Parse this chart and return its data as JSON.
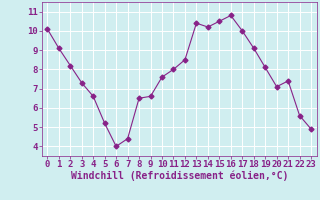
{
  "x": [
    0,
    1,
    2,
    3,
    4,
    5,
    6,
    7,
    8,
    9,
    10,
    11,
    12,
    13,
    14,
    15,
    16,
    17,
    18,
    19,
    20,
    21,
    22,
    23
  ],
  "y": [
    10.1,
    9.1,
    8.2,
    7.3,
    6.6,
    5.2,
    4.0,
    4.4,
    6.5,
    6.6,
    7.6,
    8.0,
    8.5,
    10.4,
    10.2,
    10.5,
    10.8,
    10.0,
    9.1,
    8.1,
    7.1,
    7.4,
    5.6,
    4.9
  ],
  "line_color": "#882288",
  "marker": "D",
  "markersize": 2.5,
  "xlabel": "Windchill (Refroidissement éolien,°C)",
  "xlim": [
    -0.5,
    23.5
  ],
  "ylim": [
    3.5,
    11.5
  ],
  "yticks": [
    4,
    5,
    6,
    7,
    8,
    9,
    10,
    11
  ],
  "xticks": [
    0,
    1,
    2,
    3,
    4,
    5,
    6,
    7,
    8,
    9,
    10,
    11,
    12,
    13,
    14,
    15,
    16,
    17,
    18,
    19,
    20,
    21,
    22,
    23
  ],
  "bg_color": "#d0eef0",
  "grid_color": "#ffffff",
  "tick_label_fontsize": 6.5,
  "xlabel_fontsize": 7,
  "label_color": "#882288"
}
